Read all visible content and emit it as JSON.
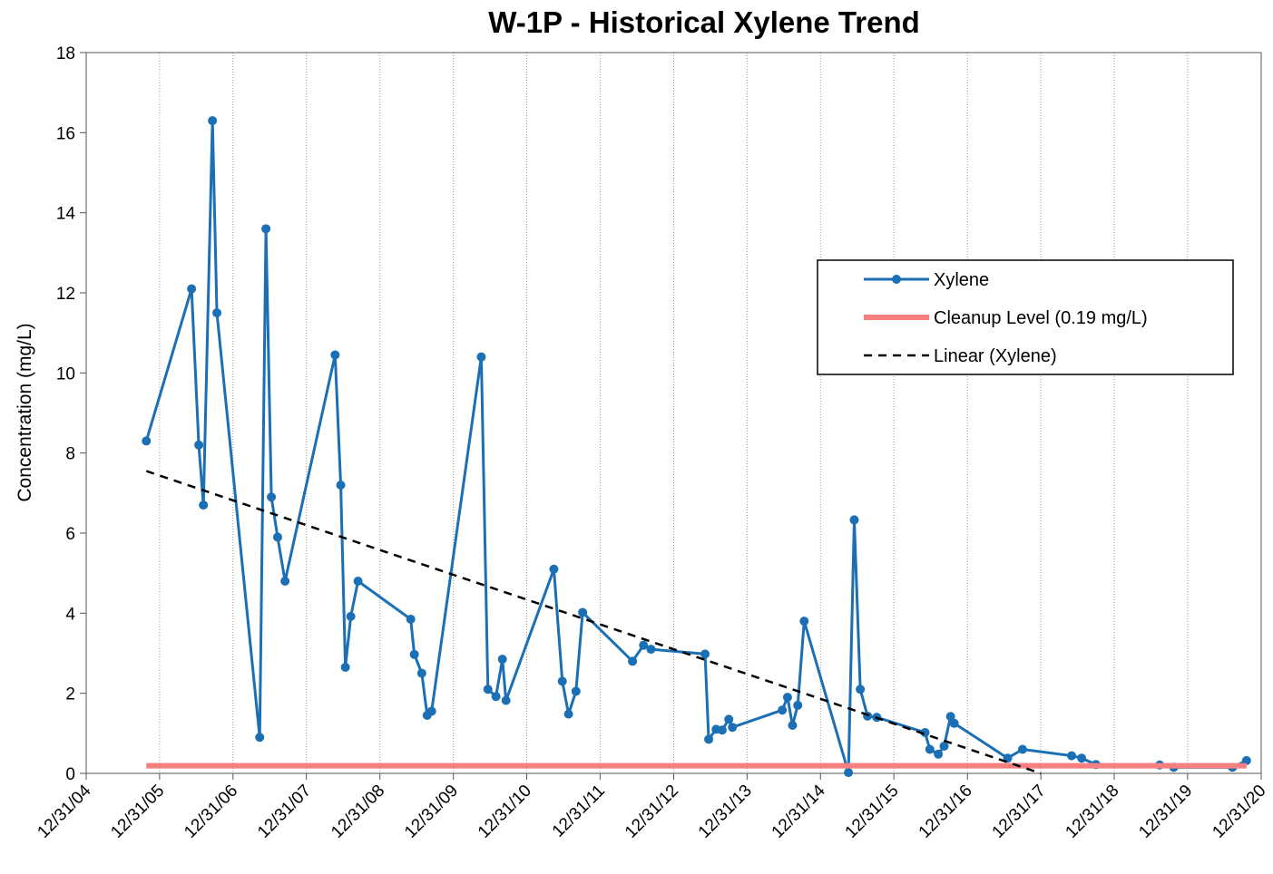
{
  "chart_data": {
    "type": "line",
    "title": "W-1P - Historical Xylene Trend",
    "y_label": "Concentration (mg/L)",
    "xlim": [
      "12/31/04",
      "12/31/20"
    ],
    "xticks": [
      "12/31/04",
      "12/31/05",
      "12/31/06",
      "12/31/07",
      "12/31/08",
      "12/31/09",
      "12/31/10",
      "12/31/11",
      "12/31/12",
      "12/31/13",
      "12/31/14",
      "12/31/15",
      "12/31/16",
      "12/31/17",
      "12/31/18",
      "12/31/19",
      "12/31/20"
    ],
    "ylim": [
      0,
      18
    ],
    "yticks": [
      0,
      2,
      4,
      6,
      8,
      10,
      12,
      14,
      16,
      18
    ],
    "grid": "x",
    "legend": "upper right",
    "series": [
      {
        "name": "Xylene",
        "color": "#1a6fb5",
        "marker": "circle",
        "x": [
          "10/26/05",
          "06/08/06",
          "07/14/06",
          "08/06/06",
          "09/20/06",
          "10/12/06",
          "05/13/07",
          "06/13/07",
          "07/10/07",
          "08/10/07",
          "09/16/07",
          "05/22/08",
          "06/19/08",
          "07/12/08",
          "08/08/08",
          "09/13/08",
          "06/02/09",
          "06/20/09",
          "07/27/09",
          "08/23/09",
          "09/14/09",
          "05/19/10",
          "06/21/10",
          "07/31/10",
          "09/01/10",
          "09/19/10",
          "05/15/11",
          "06/26/11",
          "07/27/11",
          "09/02/11",
          "10/05/11",
          "06/09/12",
          "08/03/12",
          "09/09/12",
          "06/05/13",
          "06/23/13",
          "07/30/13",
          "08/29/13",
          "10/01/13",
          "10/19/13",
          "06/24/14",
          "07/20/14",
          "08/14/14",
          "09/09/14",
          "10/11/14",
          "05/19/15",
          "06/17/15",
          "07/17/15",
          "08/22/15",
          "10/07/15",
          "06/03/16",
          "06/27/16",
          "08/08/16",
          "09/06/16",
          "10/08/16",
          "10/26/16",
          "07/19/17",
          "10/01/17",
          "06/02/18",
          "07/22/18",
          "10/01/18",
          "08/14/19",
          "10/23/19",
          "08/10/20",
          "10/19/20"
        ],
        "values": [
          8.3,
          12.1,
          8.2,
          6.7,
          16.3,
          11.5,
          0.9,
          13.6,
          6.9,
          5.9,
          4.8,
          10.45,
          7.2,
          2.65,
          3.92,
          4.8,
          3.85,
          2.97,
          2.5,
          1.45,
          1.55,
          10.4,
          2.1,
          1.92,
          2.85,
          1.82,
          5.1,
          2.3,
          1.48,
          2.05,
          4.02,
          2.8,
          3.2,
          3.1,
          2.98,
          0.85,
          1.1,
          1.08,
          1.35,
          1.15,
          1.58,
          1.9,
          1.2,
          1.7,
          3.8,
          0.02,
          6.33,
          2.1,
          1.43,
          1.4,
          1.02,
          0.6,
          0.48,
          0.68,
          1.42,
          1.25,
          0.38,
          0.6,
          0.44,
          0.38,
          0.22,
          0.21,
          0.15,
          0.15,
          0.32
        ]
      },
      {
        "name": "Cleanup Level (0.19 mg/L)",
        "color": "#f77f7f",
        "width": 6,
        "x": [
          "10/26/05",
          "10/19/20"
        ],
        "values": [
          0.19,
          0.19
        ]
      },
      {
        "name": "Linear (Xylene)",
        "color": "#000000",
        "dash": "dashed",
        "x": [
          "10/26/05",
          "12/31/17"
        ],
        "values": [
          7.55,
          0
        ]
      }
    ]
  }
}
